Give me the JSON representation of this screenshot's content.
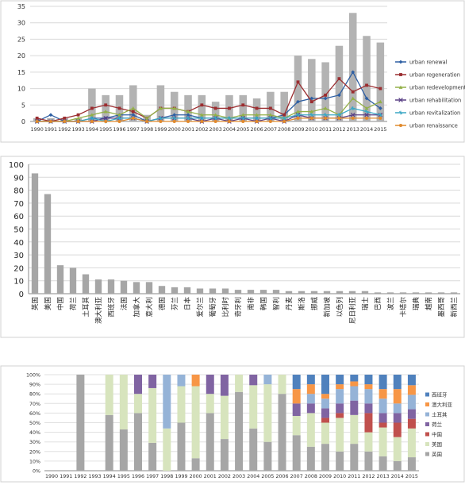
{
  "chart_data": [
    {
      "type": "bar+line",
      "categories": [
        "1990",
        "1991",
        "1992",
        "1993",
        "1994",
        "1995",
        "1996",
        "1997",
        "1998",
        "1999",
        "2000",
        "2001",
        "2002",
        "2003",
        "2004",
        "2005",
        "2006",
        "2007",
        "2008",
        "2009",
        "2010",
        "2011",
        "2012",
        "2013",
        "2014",
        "2015"
      ],
      "ylim": [
        0,
        35
      ],
      "yticks": [
        "0",
        "5",
        "10",
        "15",
        "20",
        "25",
        "30",
        "35"
      ],
      "grid": true,
      "legend_position": "right",
      "bar_values": [
        1,
        1,
        1,
        1,
        10,
        8,
        8,
        11,
        2,
        11,
        9,
        8,
        8,
        6,
        8,
        8,
        7,
        9,
        9,
        20,
        19,
        18,
        23,
        33,
        26,
        24
      ],
      "bar_color": "#b3b3b3",
      "series": [
        {
          "name": "urban renewal",
          "color": "#2e5fa3",
          "marker": "diamond",
          "values": [
            0,
            2,
            0,
            0,
            1,
            1,
            2,
            2,
            0,
            1,
            2,
            2,
            1,
            1,
            1,
            1,
            1,
            1,
            2,
            6,
            7,
            7,
            8,
            15,
            7,
            4
          ]
        },
        {
          "name": "urban regeneration",
          "color": "#9b2d30",
          "marker": "square",
          "values": [
            1,
            0,
            1,
            2,
            4,
            5,
            4,
            3,
            1,
            4,
            4,
            3,
            5,
            4,
            4,
            5,
            4,
            4,
            2,
            12,
            6,
            8,
            13,
            9,
            11,
            10
          ]
        },
        {
          "name": "urban redevelopment",
          "color": "#93b048",
          "marker": "triangle",
          "values": [
            0,
            0,
            0,
            1,
            2,
            3,
            2,
            4,
            1,
            4,
            4,
            3,
            2,
            2,
            1,
            2,
            2,
            2,
            1,
            3,
            3,
            4,
            2,
            7,
            4,
            6
          ]
        },
        {
          "name": "urban rehabilitation",
          "color": "#5a4086",
          "marker": "x",
          "values": [
            0,
            0,
            0,
            0,
            0,
            1,
            1,
            1,
            0,
            1,
            1,
            1,
            0,
            1,
            0,
            1,
            0,
            1,
            0,
            2,
            1,
            1,
            1,
            2,
            2,
            2
          ]
        },
        {
          "name": "urban revitalization",
          "color": "#3aa7c4",
          "marker": "star",
          "values": [
            0,
            0,
            0,
            0,
            1,
            0,
            1,
            1,
            0,
            1,
            1,
            1,
            1,
            1,
            1,
            1,
            1,
            1,
            1,
            2,
            2,
            2,
            2,
            4,
            3,
            2
          ]
        },
        {
          "name": "urban renaissance",
          "color": "#e08a2e",
          "marker": "circle",
          "values": [
            0,
            0,
            0,
            0,
            0,
            0,
            0,
            1,
            0,
            0,
            0,
            0,
            0,
            0,
            0,
            0,
            0,
            0,
            0,
            1,
            1,
            1,
            1,
            1,
            1,
            1
          ]
        }
      ]
    },
    {
      "type": "bar",
      "categories": [
        "英国",
        "美国",
        "中国",
        "荷兰",
        "土耳其",
        "澳大利亚",
        "西班牙",
        "法国",
        "加拿大",
        "意大利",
        "德国",
        "芬兰",
        "日本",
        "爱尔兰",
        "葡萄牙",
        "比利时",
        "奇牙利",
        "南非",
        "韩国",
        "智利",
        "丹麦",
        "斯洛",
        "挪威",
        "新加坡",
        "以色列",
        "尼日利亚",
        "瑞士",
        "巴西",
        "波兰",
        "卡塔尔",
        "瑞典",
        "越南",
        "墨西哥",
        "新西兰"
      ],
      "values": [
        93,
        77,
        22,
        20,
        15,
        11,
        11,
        10,
        9,
        9,
        6,
        5,
        5,
        4,
        4,
        4,
        3,
        3,
        3,
        3,
        2,
        2,
        2,
        2,
        2,
        2,
        2,
        1,
        1,
        1,
        1,
        1,
        1,
        1
      ],
      "ylim": [
        0,
        100
      ],
      "yticks": [
        "0",
        "10",
        "20",
        "30",
        "40",
        "50",
        "60",
        "70",
        "80",
        "90",
        "100"
      ],
      "grid": true,
      "bar_color": "#a6a6a6"
    },
    {
      "type": "stacked-bar-100",
      "categories": [
        "1990",
        "1991",
        "1992",
        "1993",
        "1994",
        "1995",
        "1996",
        "1997",
        "1998",
        "1999",
        "2000",
        "2001",
        "2002",
        "2003",
        "2004",
        "2005",
        "2006",
        "2007",
        "2008",
        "2009",
        "2010",
        "2011",
        "2012",
        "2013",
        "2014",
        "2015"
      ],
      "yticks": [
        "0%",
        "10%",
        "20%",
        "30%",
        "40%",
        "50%",
        "60%",
        "70%",
        "80%",
        "90%",
        "100%"
      ],
      "grid": true,
      "legend_position": "right",
      "series": [
        {
          "name": "英国",
          "color": "#a6a6a6",
          "values": [
            0,
            0,
            100,
            0,
            58,
            43,
            60,
            29,
            0,
            50,
            13,
            60,
            33,
            82,
            44,
            30,
            80,
            37,
            25,
            28,
            20,
            28,
            20,
            15,
            10,
            14
          ]
        },
        {
          "name": "美国",
          "color": "#d7e4bd",
          "values": [
            0,
            0,
            0,
            0,
            42,
            57,
            20,
            57,
            44,
            38,
            75,
            20,
            45,
            18,
            45,
            60,
            20,
            20,
            35,
            22,
            35,
            30,
            20,
            30,
            25,
            30
          ]
        },
        {
          "name": "中国",
          "color": "#c0504d",
          "values": [
            0,
            0,
            0,
            0,
            0,
            0,
            0,
            0,
            0,
            0,
            0,
            0,
            0,
            0,
            0,
            0,
            0,
            0,
            0,
            5,
            5,
            0,
            20,
            5,
            15,
            10
          ]
        },
        {
          "name": "荷兰",
          "color": "#8064a2",
          "values": [
            0,
            0,
            0,
            0,
            0,
            0,
            20,
            14,
            0,
            0,
            0,
            20,
            22,
            0,
            11,
            0,
            0,
            13,
            10,
            10,
            10,
            15,
            10,
            10,
            10,
            10
          ]
        },
        {
          "name": "土耳其",
          "color": "#95b3d7",
          "values": [
            0,
            0,
            0,
            0,
            0,
            0,
            0,
            0,
            56,
            12,
            0,
            0,
            0,
            0,
            0,
            10,
            0,
            0,
            10,
            10,
            15,
            15,
            15,
            15,
            10,
            15
          ]
        },
        {
          "name": "澳大利亚",
          "color": "#f79646",
          "values": [
            0,
            0,
            0,
            0,
            0,
            0,
            0,
            0,
            0,
            0,
            12,
            0,
            0,
            0,
            0,
            0,
            0,
            15,
            10,
            5,
            5,
            5,
            5,
            10,
            15,
            10
          ]
        },
        {
          "name": "西班牙",
          "color": "#4f81bd",
          "values": [
            0,
            0,
            0,
            0,
            0,
            0,
            0,
            0,
            0,
            0,
            0,
            0,
            0,
            0,
            0,
            0,
            0,
            15,
            10,
            20,
            10,
            7,
            10,
            15,
            15,
            11
          ]
        }
      ]
    }
  ]
}
